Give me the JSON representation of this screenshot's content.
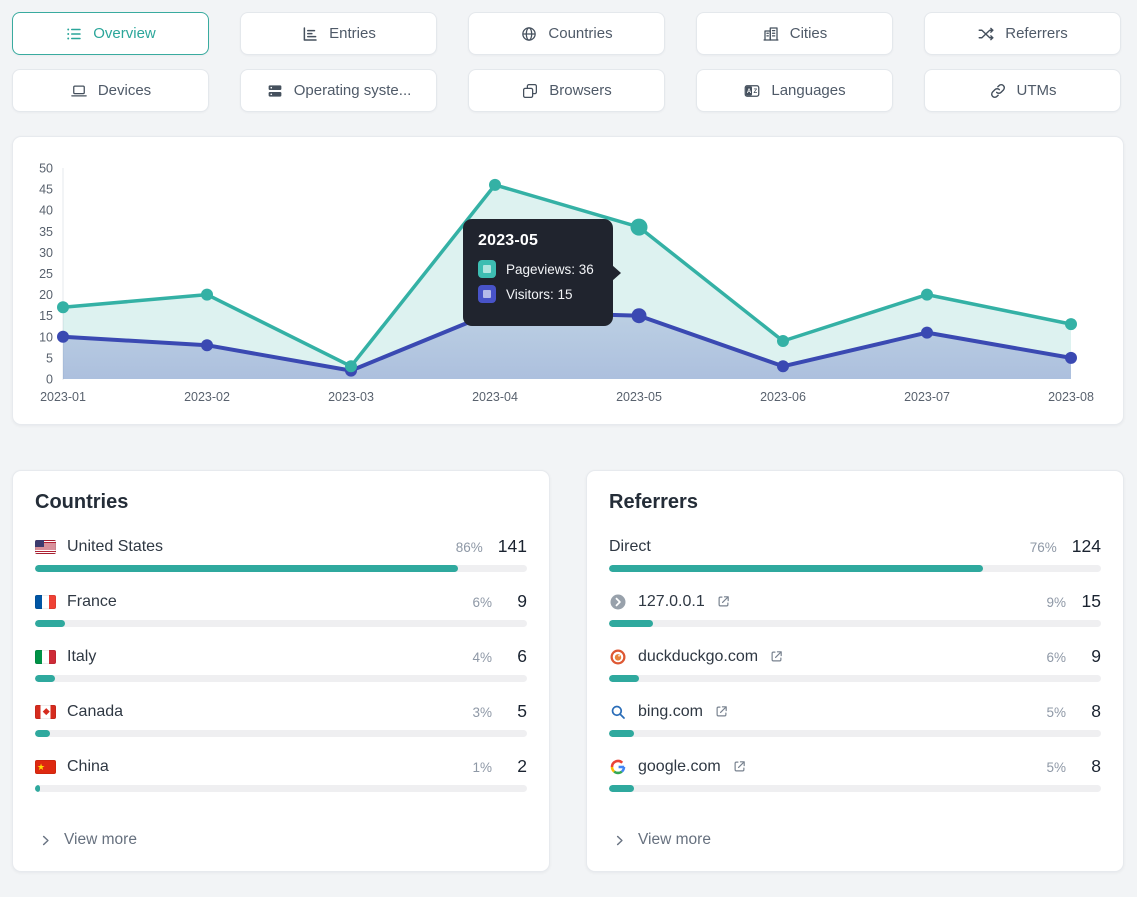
{
  "tabs": [
    {
      "label": "Overview",
      "icon": "list-icon",
      "active": true
    },
    {
      "label": "Entries",
      "icon": "chart-bars-icon",
      "active": false
    },
    {
      "label": "Countries",
      "icon": "globe-icon",
      "active": false
    },
    {
      "label": "Cities",
      "icon": "buildings-icon",
      "active": false
    },
    {
      "label": "Referrers",
      "icon": "shuffle-icon",
      "active": false
    },
    {
      "label": "Devices",
      "icon": "laptop-icon",
      "active": false
    },
    {
      "label": "Operating syste...",
      "icon": "server-stack-icon",
      "active": false
    },
    {
      "label": "Browsers",
      "icon": "app-windows-icon",
      "active": false
    },
    {
      "label": "Languages",
      "icon": "translate-icon",
      "active": false
    },
    {
      "label": "UTMs",
      "icon": "link-icon",
      "active": false
    }
  ],
  "colors": {
    "accent_teal": "#2ba69a",
    "pageviews_line": "#34b1a5",
    "visitors_line": "#3a49b2",
    "bar_fill": "#2fa99e",
    "tooltip_bg": "#20242e"
  },
  "chart_data": {
    "type": "line",
    "x": [
      "2023-01",
      "2023-02",
      "2023-03",
      "2023-04",
      "2023-05",
      "2023-06",
      "2023-07",
      "2023-08"
    ],
    "series": [
      {
        "name": "Pageviews",
        "color": "#34b1a5",
        "badge_color": "#3dbdb2",
        "values": [
          17,
          20,
          3,
          46,
          36,
          9,
          20,
          13
        ]
      },
      {
        "name": "Visitors",
        "color": "#3a49b2",
        "badge_color": "#4853c8",
        "values": [
          10,
          8,
          2,
          16,
          15,
          3,
          11,
          5
        ]
      }
    ],
    "ylim": [
      0,
      50
    ],
    "ytick_step": 5,
    "grid": false,
    "legend": "tooltip-only",
    "hover_index": 4,
    "tooltip": {
      "title": "2023-05",
      "items": [
        {
          "label": "Pageviews",
          "value": 36,
          "text": "Pageviews: 36"
        },
        {
          "label": "Visitors",
          "value": 15,
          "text": "Visitors: 15"
        }
      ]
    }
  },
  "countries": {
    "title": "Countries",
    "view_more": "View more",
    "rows": [
      {
        "name": "United States",
        "flag": "us",
        "percent": "86%",
        "count": "141",
        "bar": 86
      },
      {
        "name": "France",
        "flag": "fr",
        "percent": "6%",
        "count": "9",
        "bar": 6
      },
      {
        "name": "Italy",
        "flag": "it",
        "percent": "4%",
        "count": "6",
        "bar": 4
      },
      {
        "name": "Canada",
        "flag": "ca",
        "percent": "3%",
        "count": "5",
        "bar": 3
      },
      {
        "name": "China",
        "flag": "cn",
        "percent": "1%",
        "count": "2",
        "bar": 1
      }
    ]
  },
  "referrers": {
    "title": "Referrers",
    "view_more": "View more",
    "rows": [
      {
        "name": "Direct",
        "favicon": null,
        "external_link": false,
        "percent": "76%",
        "count": "124",
        "bar": 76
      },
      {
        "name": "127.0.0.1",
        "favicon": "default-favicon",
        "external_link": true,
        "percent": "9%",
        "count": "15",
        "bar": 9
      },
      {
        "name": "duckduckgo.com",
        "favicon": "duckduckgo-favicon",
        "external_link": true,
        "percent": "6%",
        "count": "9",
        "bar": 6
      },
      {
        "name": "bing.com",
        "favicon": "bing-favicon",
        "external_link": true,
        "percent": "5%",
        "count": "8",
        "bar": 5
      },
      {
        "name": "google.com",
        "favicon": "google-favicon",
        "external_link": true,
        "percent": "5%",
        "count": "8",
        "bar": 5
      }
    ]
  }
}
